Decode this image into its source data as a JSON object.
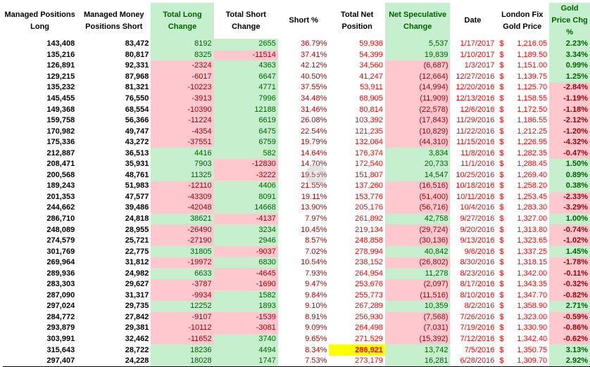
{
  "headers": [
    "Managed Positions Long",
    "Managed Money Positions Short",
    "Total Long Change",
    "Total Short Change",
    "Short %",
    "Total Net Position",
    "Net Speculative Change",
    "Date",
    "London Fix Gold Price",
    "Gold Price Chg %"
  ],
  "header_lines": [
    [
      "Managed Positions",
      "Long"
    ],
    [
      "Managed Money",
      "Positions Short"
    ],
    [
      "Total Long",
      "Change"
    ],
    [
      "Total Short",
      "Change"
    ],
    [
      "Short %"
    ],
    [
      "Total Net",
      "Position"
    ],
    [
      "Net Speculative",
      "Change"
    ],
    [
      "Date"
    ],
    [
      "London Fix",
      "Gold Price"
    ],
    [
      "Gold Price Chg %"
    ]
  ],
  "currency_symbol": "$",
  "colors": {
    "positive_bg": "#c6efce",
    "positive_text": "#006100",
    "negative_bg": "#ffc7ce",
    "negative_text": "#9c0006",
    "highlight": "#ffff00",
    "red_text": "#ff0000"
  },
  "rows": [
    {
      "long": "143,408",
      "short": "83,472",
      "long_chg": "8192",
      "short_chg": "2655",
      "short_pct": "36.79%",
      "net": "59,936",
      "net_chg": "5,537",
      "date": "1/17/2017",
      "gold": "1,216.05",
      "gold_chg": "2.23%"
    },
    {
      "long": "135,216",
      "short": "80,817",
      "long_chg": "8325",
      "short_chg": "-11514",
      "short_pct": "37.41%",
      "net": "54,399",
      "net_chg": "19,839",
      "date": "1/10/2017",
      "gold": "1,189.50",
      "gold_chg": "3.34%"
    },
    {
      "long": "126,891",
      "short": "92,331",
      "long_chg": "-2324",
      "short_chg": "4363",
      "short_pct": "42.12%",
      "net": "34,560",
      "net_chg": "(6,687)",
      "date": "1/3/2017",
      "gold": "1,151.00",
      "gold_chg": "0.99%"
    },
    {
      "long": "129,215",
      "short": "87,968",
      "long_chg": "-6017",
      "short_chg": "6647",
      "short_pct": "40.50%",
      "net": "41,247",
      "net_chg": "(12,664)",
      "date": "12/27/2016",
      "gold": "1,139.75",
      "gold_chg": "1.25%"
    },
    {
      "long": "135,232",
      "short": "81,321",
      "long_chg": "-10223",
      "short_chg": "4771",
      "short_pct": "37.55%",
      "net": "53,911",
      "net_chg": "(14,994)",
      "date": "12/20/2016",
      "gold": "1,125.70",
      "gold_chg": "-2.84%"
    },
    {
      "long": "145,455",
      "short": "76,550",
      "long_chg": "-3913",
      "short_chg": "7996",
      "short_pct": "34.48%",
      "net": "68,905",
      "net_chg": "(11,909)",
      "date": "12/13/2016",
      "gold": "1,158.55",
      "gold_chg": "-1.19%"
    },
    {
      "long": "149,368",
      "short": "68,554",
      "long_chg": "-10390",
      "short_chg": "12188",
      "short_pct": "31.46%",
      "net": "80,814",
      "net_chg": "(22,578)",
      "date": "12/6/2016",
      "gold": "1,172.50",
      "gold_chg": "-1.18%"
    },
    {
      "long": "159,758",
      "short": "56,366",
      "long_chg": "-11224",
      "short_chg": "6619",
      "short_pct": "26.08%",
      "net": "103,392",
      "net_chg": "(17,843)",
      "date": "11/29/2016",
      "gold": "1,186.55",
      "gold_chg": "-2.12%"
    },
    {
      "long": "170,982",
      "short": "49,747",
      "long_chg": "-4354",
      "short_chg": "6475",
      "short_pct": "22.54%",
      "net": "121,235",
      "net_chg": "(10,829)",
      "date": "11/22/2016",
      "gold": "1,212.25",
      "gold_chg": "-1.20%"
    },
    {
      "long": "175,336",
      "short": "43,272",
      "long_chg": "-37551",
      "short_chg": "6759",
      "short_pct": "19.79%",
      "net": "132,064",
      "net_chg": "(44,310)",
      "date": "11/15/2016",
      "gold": "1,226.95",
      "gold_chg": "-4.32%"
    },
    {
      "long": "212,887",
      "short": "36,513",
      "long_chg": "4416",
      "short_chg": "582",
      "short_pct": "14.64%",
      "net": "176,374",
      "net_chg": "3,834",
      "date": "11/8/2016",
      "gold": "1,282.35",
      "gold_chg": "-0.47%"
    },
    {
      "long": "208,471",
      "short": "35,931",
      "long_chg": "7903",
      "short_chg": "-12830",
      "short_pct": "14.70%",
      "net": "172,540",
      "net_chg": "20,733",
      "date": "11/1/2016",
      "gold": "1,288.45",
      "gold_chg": "1.50%"
    },
    {
      "long": "200,568",
      "short": "48,761",
      "long_chg": "11325",
      "short_chg": "-3222",
      "short_pct": "19.56%",
      "net": "151,807",
      "net_chg": "14,547",
      "date": "10/25/2016",
      "gold": "1,269.40",
      "gold_chg": "0.89%"
    },
    {
      "long": "189,243",
      "short": "51,983",
      "long_chg": "-12110",
      "short_chg": "4406",
      "short_pct": "21.55%",
      "net": "137,260",
      "net_chg": "(16,516)",
      "date": "10/18/2016",
      "gold": "1,258.20",
      "gold_chg": "0.38%"
    },
    {
      "long": "201,353",
      "short": "47,577",
      "long_chg": "-43309",
      "short_chg": "8091",
      "short_pct": "19.11%",
      "net": "153,776",
      "net_chg": "(51,400)",
      "date": "10/11/2016",
      "gold": "1,253.45",
      "gold_chg": "-2.33%"
    },
    {
      "long": "244,662",
      "short": "39,486",
      "long_chg": "-42048",
      "short_chg": "14668",
      "short_pct": "13.90%",
      "net": "205,176",
      "net_chg": "(56,716)",
      "date": "10/4/2016",
      "gold": "1,283.30",
      "gold_chg": "-3.29%"
    },
    {
      "long": "286,710",
      "short": "24,818",
      "long_chg": "38621",
      "short_chg": "-4137",
      "short_pct": "7.97%",
      "net": "261,892",
      "net_chg": "42,758",
      "date": "9/27/2016",
      "gold": "1,327.00",
      "gold_chg": "1.00%"
    },
    {
      "long": "248,089",
      "short": "28,955",
      "long_chg": "-26490",
      "short_chg": "3234",
      "short_pct": "10.45%",
      "net": "219,134",
      "net_chg": "(29,724)",
      "date": "9/20/2016",
      "gold": "1,313.80",
      "gold_chg": "-0.74%"
    },
    {
      "long": "274,579",
      "short": "25,721",
      "long_chg": "-27190",
      "short_chg": "2946",
      "short_pct": "8.57%",
      "net": "248,858",
      "net_chg": "(30,136)",
      "date": "9/13/2016",
      "gold": "1,323.65",
      "gold_chg": "-1.02%"
    },
    {
      "long": "301,769",
      "short": "22,775",
      "long_chg": "31805",
      "short_chg": "-9037",
      "short_pct": "7.02%",
      "net": "278,994",
      "net_chg": "40,842",
      "date": "9/6/2016",
      "gold": "1,337.25",
      "gold_chg": "1.45%"
    },
    {
      "long": "269,964",
      "short": "31,812",
      "long_chg": "-19972",
      "short_chg": "6830",
      "short_pct": "10.54%",
      "net": "238,152",
      "net_chg": "(26,802)",
      "date": "8/30/2016",
      "gold": "1,318.15",
      "gold_chg": "-1.78%"
    },
    {
      "long": "289,936",
      "short": "24,982",
      "long_chg": "6633",
      "short_chg": "-4645",
      "short_pct": "7.93%",
      "net": "264,954",
      "net_chg": "11,278",
      "date": "8/23/2016",
      "gold": "1,342.00",
      "gold_chg": "-0.11%"
    },
    {
      "long": "283,303",
      "short": "29,627",
      "long_chg": "-3787",
      "short_chg": "-1690",
      "short_pct": "9.47%",
      "net": "253,676",
      "net_chg": "(2,097)",
      "date": "8/17/2016",
      "gold": "1,343.35",
      "gold_chg": "-0.32%"
    },
    {
      "long": "287,090",
      "short": "31,317",
      "long_chg": "-9934",
      "short_chg": "1582",
      "short_pct": "9.84%",
      "net": "255,773",
      "net_chg": "(11,516)",
      "date": "8/10/2016",
      "gold": "1,347.70",
      "gold_chg": "-0.82%"
    },
    {
      "long": "297,024",
      "short": "29,735",
      "long_chg": "12252",
      "short_chg": "1893",
      "short_pct": "9.10%",
      "net": "267,289",
      "net_chg": "10,359",
      "date": "8/2/2016",
      "gold": "1,358.90",
      "gold_chg": "2.71%"
    },
    {
      "long": "284,772",
      "short": "27,842",
      "long_chg": "-9107",
      "short_chg": "-1539",
      "short_pct": "8.91%",
      "net": "256,930",
      "net_chg": "(7,568)",
      "date": "7/26/2016",
      "gold": "1,323.00",
      "gold_chg": "-0.59%"
    },
    {
      "long": "293,879",
      "short": "29,381",
      "long_chg": "-10112",
      "short_chg": "-3081",
      "short_pct": "9.09%",
      "net": "264,498",
      "net_chg": "(7,031)",
      "date": "7/19/2016",
      "gold": "1,330.90",
      "gold_chg": "-0.86%"
    },
    {
      "long": "303,991",
      "short": "32,462",
      "long_chg": "-11652",
      "short_chg": "3740",
      "short_pct": "9.65%",
      "net": "271,529",
      "net_chg": "(15,392)",
      "date": "7/12/2016",
      "gold": "1,342.40",
      "gold_chg": "-0.62%"
    },
    {
      "long": "315,643",
      "short": "28,722",
      "long_chg": "18236",
      "short_chg": "4494",
      "short_pct": "8.34%",
      "net": "286,921",
      "net_chg": "13,742",
      "date": "7/5/2016",
      "gold": "1,350.75",
      "gold_chg": "3.13%",
      "net_highlight": true
    },
    {
      "long": "297,407",
      "short": "24,228",
      "long_chg": "18028",
      "short_chg": "1747",
      "short_pct": "7.53%",
      "net": "273,179",
      "net_chg": "16,281",
      "date": "6/28/2016",
      "gold": "1,309.70",
      "gold_chg": "2.92%"
    }
  ]
}
